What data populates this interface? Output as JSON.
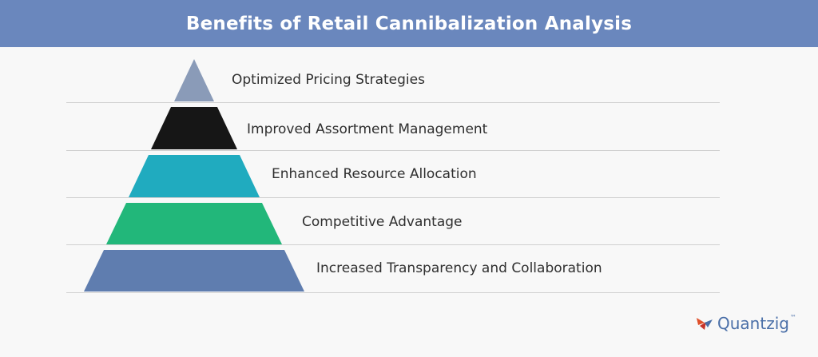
{
  "header": {
    "title": "Benefits of Retail Cannibalization Analysis",
    "background": "#6a87bd"
  },
  "pyramid": {
    "tiers": [
      {
        "label": "Optimized Pricing Strategies",
        "color": "#8a9bb8"
      },
      {
        "label": "Improved Assortment Management",
        "color": "#161616"
      },
      {
        "label": "Enhanced Resource Allocation",
        "color": "#20abbf"
      },
      {
        "label": "Competitive Advantage",
        "color": "#22b77a"
      },
      {
        "label": "Increased Transparency and Collaboration",
        "color": "#5f7daf"
      }
    ]
  },
  "brand": {
    "name": "Quantzig",
    "mark": "™",
    "icon": "quantzig-logo-icon"
  }
}
